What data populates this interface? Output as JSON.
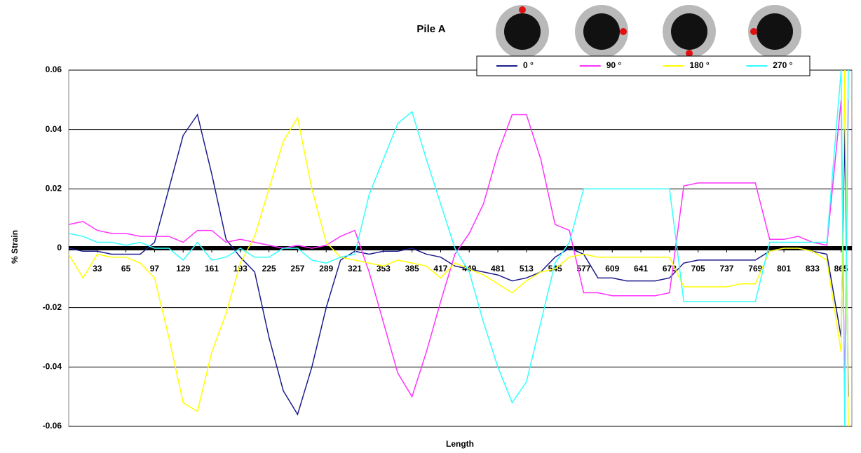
{
  "chart_data": {
    "type": "line",
    "title": "Pile A",
    "x_label": "Length",
    "y_label": "% Strain",
    "x": [
      1,
      17,
      33,
      49,
      65,
      81,
      97,
      113,
      129,
      145,
      161,
      177,
      193,
      209,
      225,
      241,
      257,
      273,
      289,
      305,
      321,
      337,
      353,
      369,
      385,
      401,
      417,
      433,
      449,
      465,
      481,
      497,
      513,
      529,
      545,
      561,
      577,
      593,
      609,
      625,
      641,
      657,
      673,
      689,
      705,
      721,
      737,
      753,
      769,
      785,
      801,
      817,
      833,
      849,
      865,
      869,
      873
    ],
    "series": [
      {
        "name": "0 °",
        "color": "#1c1c8c",
        "values": [
          0,
          -0.001,
          -0.001,
          -0.002,
          -0.002,
          -0.002,
          0.002,
          0.02,
          0.038,
          0.045,
          0.025,
          0.003,
          -0.003,
          -0.008,
          -0.03,
          -0.048,
          -0.056,
          -0.04,
          -0.02,
          -0.004,
          -0.001,
          -0.002,
          -0.001,
          -0.001,
          0,
          -0.002,
          -0.003,
          -0.006,
          -0.007,
          -0.008,
          -0.009,
          -0.011,
          -0.01,
          -0.008,
          -0.003,
          0,
          -0.002,
          -0.01,
          -0.01,
          -0.011,
          -0.011,
          -0.011,
          -0.01,
          -0.005,
          -0.004,
          -0.004,
          -0.004,
          -0.004,
          -0.004,
          -0.001,
          0,
          0,
          -0.001,
          -0.002,
          -0.03,
          0.04,
          -0.05
        ]
      },
      {
        "name": "90 °",
        "color": "#ff33ff",
        "values": [
          0.008,
          0.009,
          0.006,
          0.005,
          0.005,
          0.004,
          0.004,
          0.004,
          0.002,
          0.006,
          0.006,
          0.002,
          0.003,
          0.002,
          0.001,
          0,
          0.001,
          0,
          0.001,
          0.004,
          0.006,
          -0.008,
          -0.025,
          -0.042,
          -0.05,
          -0.035,
          -0.018,
          -0.002,
          0.005,
          0.015,
          0.032,
          0.045,
          0.045,
          0.03,
          0.008,
          0.006,
          -0.015,
          -0.015,
          -0.016,
          -0.016,
          -0.016,
          -0.016,
          -0.015,
          0.021,
          0.022,
          0.022,
          0.022,
          0.022,
          0.022,
          0.003,
          0.003,
          0.004,
          0.002,
          0.001,
          0.05,
          -0.05,
          0.05
        ]
      },
      {
        "name": "180 °",
        "color": "#ffff00",
        "values": [
          -0.002,
          -0.01,
          -0.002,
          -0.003,
          -0.003,
          -0.005,
          -0.01,
          -0.03,
          -0.052,
          -0.055,
          -0.035,
          -0.022,
          -0.005,
          0.004,
          0.02,
          0.036,
          0.044,
          0.02,
          0.002,
          -0.003,
          -0.004,
          -0.005,
          -0.006,
          -0.004,
          -0.005,
          -0.006,
          -0.01,
          -0.005,
          -0.007,
          -0.009,
          -0.012,
          -0.015,
          -0.011,
          -0.008,
          -0.007,
          -0.003,
          -0.002,
          -0.003,
          -0.003,
          -0.003,
          -0.003,
          -0.003,
          -0.003,
          -0.013,
          -0.013,
          -0.013,
          -0.013,
          -0.012,
          -0.012,
          -0.001,
          0,
          0,
          -0.001,
          -0.004,
          -0.035,
          0.06,
          -0.06
        ]
      },
      {
        "name": "270 °",
        "color": "#33ffff",
        "values": [
          0.005,
          0.004,
          0.002,
          0.002,
          0.001,
          0.002,
          0,
          0,
          -0.004,
          0.002,
          -0.004,
          -0.003,
          0,
          -0.003,
          -0.003,
          0,
          0,
          -0.004,
          -0.005,
          -0.003,
          -0.002,
          0.018,
          0.03,
          0.042,
          0.046,
          0.03,
          0.015,
          0,
          -0.008,
          -0.025,
          -0.04,
          -0.052,
          -0.045,
          -0.025,
          -0.005,
          0.002,
          0.02,
          0.02,
          0.02,
          0.02,
          0.02,
          0.02,
          0.02,
          -0.018,
          -0.018,
          -0.018,
          -0.018,
          -0.018,
          -0.018,
          0.002,
          0.002,
          0.002,
          0.002,
          0.002,
          0.06,
          -0.06,
          0.06
        ]
      }
    ],
    "xlim": [
      1,
      877
    ],
    "xticks": [
      33,
      65,
      97,
      129,
      161,
      193,
      225,
      257,
      289,
      321,
      353,
      385,
      417,
      449,
      481,
      513,
      545,
      577,
      609,
      641,
      673,
      705,
      737,
      769,
      801,
      833,
      865
    ],
    "ylim": [
      -0.06,
      0.06
    ],
    "yticks": [
      -0.06,
      -0.04,
      -0.02,
      0,
      0.02,
      0.04,
      0.06
    ],
    "grid": true
  }
}
